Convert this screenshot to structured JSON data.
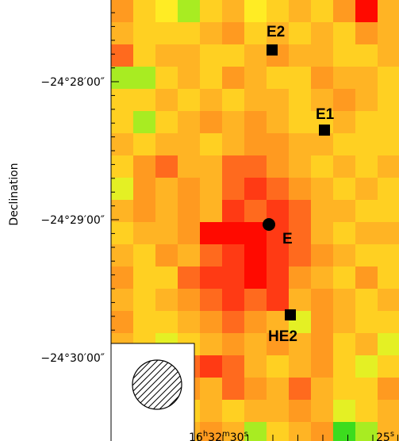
{
  "chart_data": {
    "type": "image",
    "y_axis_label": "Declination",
    "y_tick_labels": [
      "−24°28′00″",
      "−24°29′00″",
      "−24°30′00″"
    ],
    "x_tick_labels": [
      [
        "16",
        "h",
        "32",
        "m",
        "30",
        "s"
      ],
      [
        "25",
        "s"
      ]
    ],
    "sources": [
      "E2",
      "E1",
      "E",
      "HE2"
    ],
    "palette": {
      "r": "#ff0a00",
      "R": "#ff3a14",
      "o": "#ff6a1e",
      "O": "#ff9a20",
      "A": "#ffb424",
      "Y": "#ffd022",
      "y": "#ffec24",
      "g": "#e4f024",
      "G": "#a8ec22",
      "V": "#3cdc1e"
    },
    "pixels": [
      "OYyGYAyYAYOrA",
      "AYYYAOYAYAYOA",
      "oYAAYYAOAAYYA",
      "GGYAYOAYYOAAY",
      "YYAYAYAAYAOAY",
      "YGYAOAOAYYAYY",
      "AYAAYAOOAAYYY",
      "YOoAAooOAYAYA",
      "gOAOAoRoOAYAY",
      "AOAOARoRoAAYY",
      "YAAOrrrRoAYAA",
      "AYOAoRrRoOAYY",
      "OYYoRRrROAYOY",
      "AYAOoRoRAOAYA",
      "OYYAOoOAgOAYY",
      "AYgYAOAOAOYAg",
      "YAooRoAYAOYgY",
      "oAYOAoOAoAYYO",
      "YOAYAYAAOAgYA",
      "AYYAOAGYAOVGA"
    ]
  }
}
